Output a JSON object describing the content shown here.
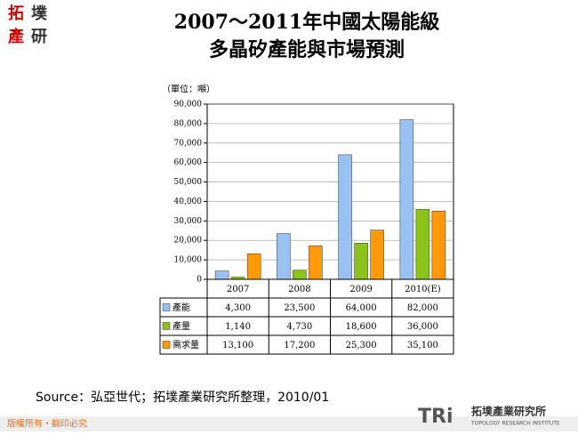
{
  "header": {
    "logo": [
      "拓",
      "墣",
      "產",
      "研"
    ],
    "title_lines": [
      "2007～2011年中國太陽能級",
      "多晶矽產能與市場預測"
    ]
  },
  "chart_data": {
    "type": "bar",
    "unit_label": "（單位：噸）",
    "categories": [
      "2007",
      "2008",
      "2009",
      "2010(E)"
    ],
    "series": [
      {
        "name": "產能",
        "color": "#99c2f2",
        "values": [
          4300,
          23500,
          64000,
          82000
        ],
        "value_labels": [
          "4,300",
          "23,500",
          "64,000",
          "82,000"
        ]
      },
      {
        "name": "產量",
        "color": "#8cc21c",
        "values": [
          1140,
          4730,
          18600,
          36000
        ],
        "value_labels": [
          "1,140",
          "4,730",
          "18,600",
          "36,000"
        ]
      },
      {
        "name": "需求量",
        "color": "#ff9a0a",
        "values": [
          13100,
          17200,
          25300,
          35100
        ],
        "value_labels": [
          "13,100",
          "17,200",
          "25,300",
          "35,100"
        ]
      }
    ],
    "ylim": [
      0,
      90000
    ],
    "yticks": [
      0,
      {
        "value": 10000,
        "label": "10,000"
      },
      {
        "value": 20000,
        "label": "20,000"
      },
      {
        "value": 30000,
        "label": "30,000"
      },
      {
        "value": 40000,
        "label": "40,000"
      },
      {
        "value": 50000,
        "label": "50,000"
      },
      {
        "value": 60000,
        "label": "60,000"
      },
      {
        "value": 70000,
        "label": "70,000"
      },
      {
        "value": 80000,
        "label": "80,000"
      },
      {
        "value": 90000,
        "label": "90,000"
      }
    ],
    "grid": true
  },
  "source": "Source：弘亞世代；拓墣產業研究所整理，2010/01",
  "footer": {
    "copyright": "版權所有‧翻印必究",
    "brand_mark": "TRi",
    "brand_name": "拓墣產業研究所",
    "brand_sub": "TOPOLOGY RESEARCH INSTITUTE"
  }
}
